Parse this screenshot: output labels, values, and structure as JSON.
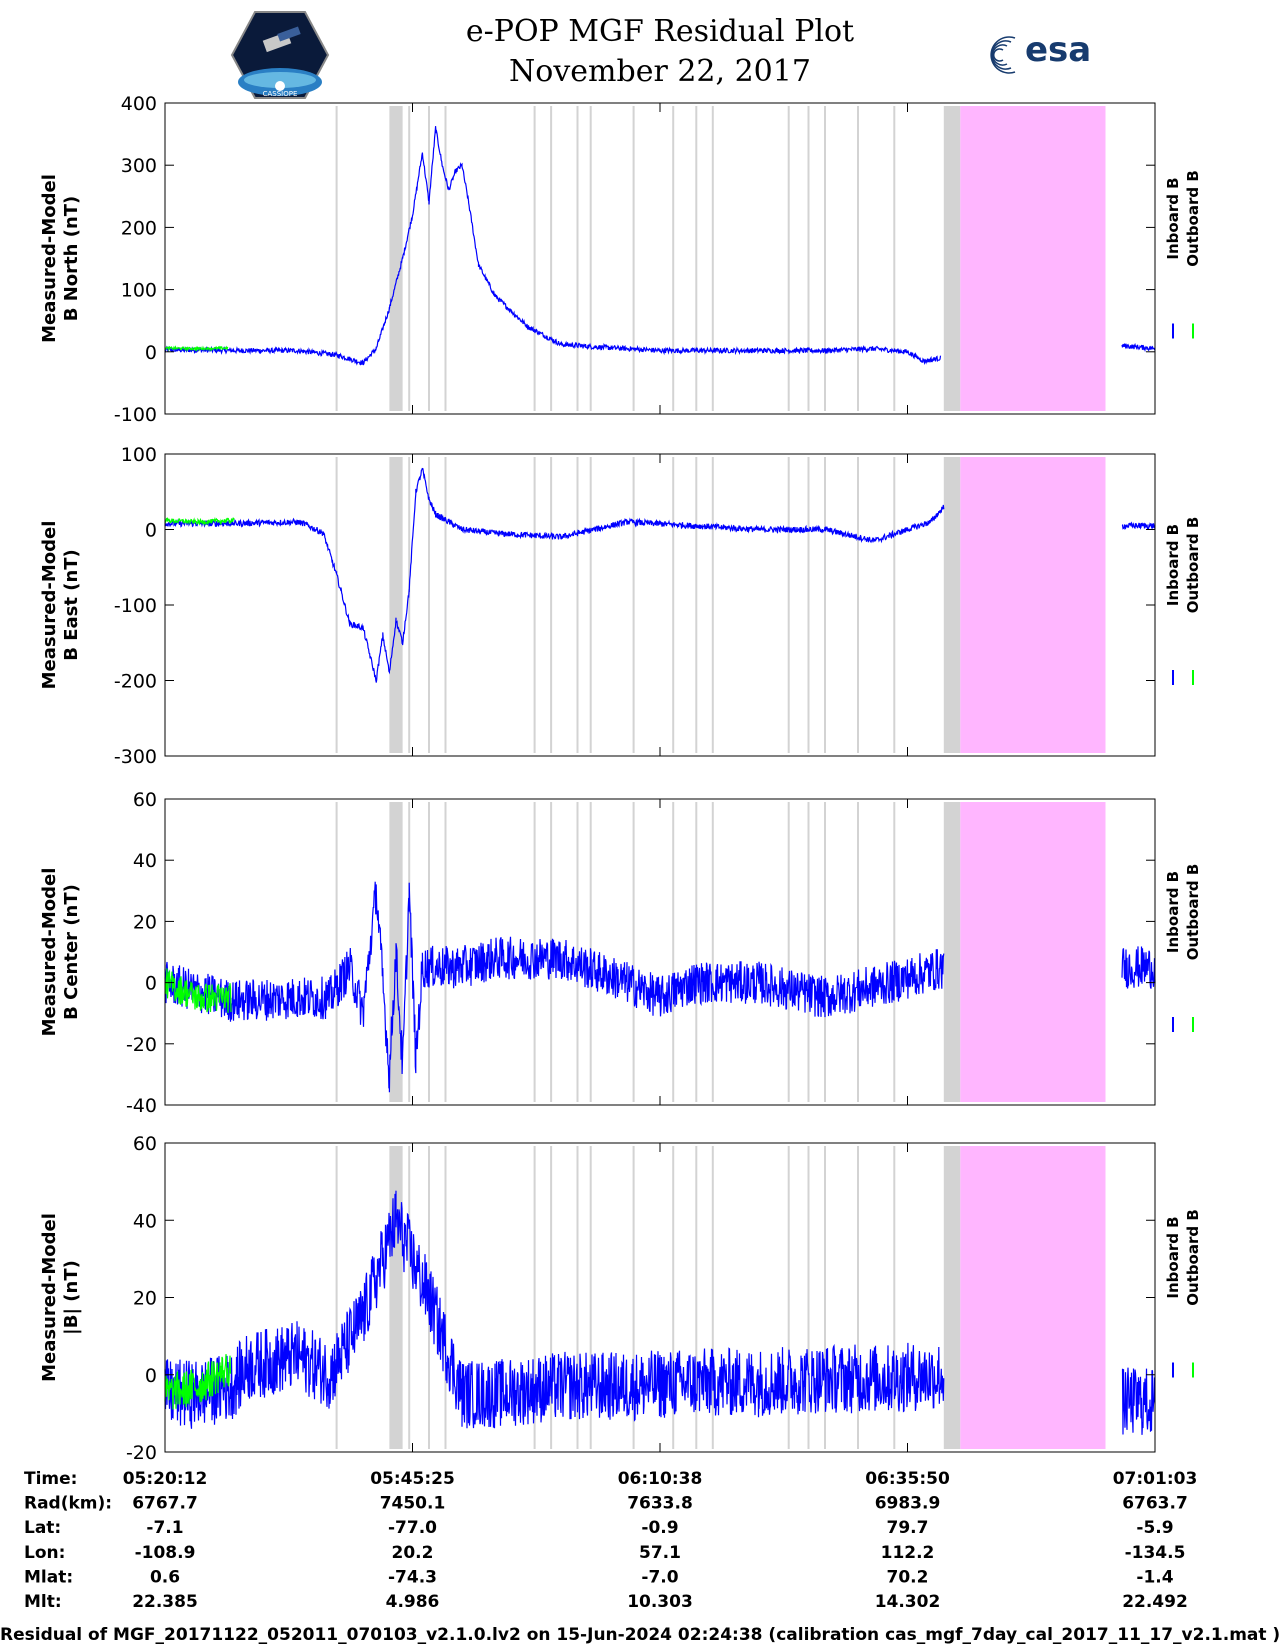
{
  "header": {
    "title_line1": "e-POP MGF Residual Plot",
    "title_line2": "November 22, 2017",
    "logo_left": "CASSIOPE",
    "logo_right": "esa"
  },
  "colors": {
    "inboard": "#0000ff",
    "outboard": "#00ff00",
    "gap_gray": "#d3d3d3",
    "missing_pink": "#ffb6ff"
  },
  "chart_data": [
    {
      "type": "line",
      "ylabel_line1": "Measured-Model",
      "ylabel_line2": "B North (nT)",
      "ylim": [
        -100,
        400
      ],
      "yticks": [
        400,
        300,
        200,
        100,
        0,
        -100
      ],
      "legend": [
        "Inboard B",
        "Outboard B"
      ],
      "series": [
        {
          "name": "Inboard B",
          "color": "#0000ff",
          "noise": 4,
          "x": [
            0,
            10,
            20,
            40,
            52,
            60,
            64,
            68,
            72,
            75,
            78,
            80,
            82,
            84,
            86,
            88,
            90,
            92,
            95,
            100,
            110,
            120,
            130,
            150,
            170,
            200,
            215,
            225,
            230,
            235
          ],
          "y": [
            3,
            3,
            2,
            2,
            -5,
            -18,
            5,
            70,
            150,
            220,
            320,
            240,
            360,
            300,
            260,
            290,
            300,
            240,
            140,
            90,
            40,
            12,
            8,
            2,
            2,
            2,
            5,
            0,
            -15,
            -10
          ]
        },
        {
          "name": "Outboard B",
          "color": "#00ff00",
          "noise": 2,
          "x": [
            0,
            10,
            19
          ],
          "y": [
            6,
            5,
            6
          ]
        }
      ],
      "xlim_gap_end": 237,
      "resume_x": [
        290,
        300
      ],
      "resume_y": [
        10,
        5
      ]
    },
    {
      "type": "line",
      "ylabel_line1": "Measured-Model",
      "ylabel_line2": "B East (nT)",
      "ylim": [
        -300,
        100
      ],
      "yticks": [
        100,
        0,
        -100,
        -200,
        -300
      ],
      "legend": [
        "Inboard B",
        "Outboard B"
      ],
      "series": [
        {
          "name": "Inboard B",
          "color": "#0000ff",
          "noise": 4,
          "x": [
            0,
            20,
            40,
            42,
            48,
            52,
            56,
            60,
            64,
            66,
            68,
            70,
            72,
            74,
            76,
            78,
            80,
            82,
            84,
            86,
            90,
            100,
            120,
            140,
            160,
            180,
            200,
            215,
            225,
            232,
            236
          ],
          "y": [
            8,
            8,
            10,
            8,
            -5,
            -60,
            -125,
            -130,
            -200,
            -140,
            -190,
            -120,
            -150,
            -80,
            50,
            80,
            40,
            20,
            15,
            10,
            0,
            -5,
            -10,
            10,
            5,
            0,
            0,
            -15,
            0,
            10,
            30
          ]
        },
        {
          "name": "Outboard B",
          "color": "#00ff00",
          "noise": 3,
          "x": [
            0,
            10,
            21
          ],
          "y": [
            12,
            10,
            12
          ]
        }
      ],
      "xlim_gap_end": 237,
      "resume_x": [
        290,
        300
      ],
      "resume_y": [
        5,
        5
      ]
    },
    {
      "type": "line",
      "ylabel_line1": "Measured-Model",
      "ylabel_line2": "B Center (nT)",
      "ylim": [
        -40,
        60
      ],
      "yticks": [
        60,
        40,
        20,
        0,
        -20,
        -40
      ],
      "legend": [
        "Inboard B",
        "Outboard B"
      ],
      "series": [
        {
          "name": "Inboard B",
          "color": "#0000ff",
          "noise": 7,
          "x": [
            0,
            20,
            40,
            50,
            56,
            60,
            64,
            68,
            70,
            72,
            74,
            76,
            78,
            80,
            84,
            90,
            100,
            120,
            140,
            150,
            160,
            180,
            200,
            220,
            236
          ],
          "y": [
            0,
            -6,
            -5,
            -5,
            5,
            -10,
            30,
            -30,
            10,
            -28,
            30,
            -25,
            5,
            5,
            5,
            5,
            8,
            8,
            0,
            -5,
            0,
            0,
            -5,
            0,
            5
          ]
        },
        {
          "name": "Outboard B",
          "color": "#00ff00",
          "noise": 5,
          "x": [
            0,
            10,
            20
          ],
          "y": [
            0,
            -5,
            -5
          ]
        }
      ],
      "xlim_gap_end": 237,
      "resume_x": [
        290,
        300
      ],
      "resume_y": [
        5,
        5
      ]
    },
    {
      "type": "line",
      "ylabel_line1": "Measured-Model",
      "ylabel_line2": "|B| (nT)",
      "ylim": [
        -20,
        60
      ],
      "yticks": [
        60,
        40,
        20,
        0,
        -20
      ],
      "legend": [
        "Inboard B",
        "Outboard B"
      ],
      "series": [
        {
          "name": "Inboard B",
          "color": "#0000ff",
          "noise": 9,
          "x": [
            0,
            10,
            20,
            25,
            40,
            50,
            60,
            70,
            80,
            90,
            100,
            120,
            140,
            160,
            180,
            200,
            220,
            236
          ],
          "y": [
            -5,
            -5,
            -3,
            2,
            5,
            0,
            15,
            40,
            20,
            -5,
            -5,
            -3,
            -3,
            -2,
            -2,
            -1,
            -1,
            0
          ]
        },
        {
          "name": "Outboard B",
          "color": "#00ff00",
          "noise": 5,
          "x": [
            0,
            10,
            20
          ],
          "y": [
            -5,
            -3,
            2
          ]
        }
      ],
      "xlim_gap_end": 237,
      "resume_x": [
        290,
        300
      ],
      "resume_y": [
        -7,
        -7
      ]
    }
  ],
  "time_axis": {
    "xlim": [
      0,
      300
    ],
    "tick_positions": [
      0,
      75,
      150,
      225,
      300
    ],
    "gray_bands": [
      [
        68,
        72
      ],
      [
        236,
        241
      ]
    ],
    "gray_lines": [
      52,
      74,
      80,
      85,
      112,
      117,
      125,
      129,
      142,
      154,
      161,
      166,
      189,
      195,
      200,
      210,
      221
    ],
    "pink_band": [
      241,
      285
    ]
  },
  "info_table": {
    "labels": [
      "Time:",
      "Rad(km):",
      "Lat:",
      "Lon:",
      "Mlat:",
      "Mlt:"
    ],
    "columns": [
      [
        "05:20:12",
        "6767.7",
        "-7.1",
        "-108.9",
        "0.6",
        "22.385"
      ],
      [
        "05:45:25",
        "7450.1",
        "-77.0",
        "20.2",
        "-74.3",
        "4.986"
      ],
      [
        "06:10:38",
        "7633.8",
        "-0.9",
        "57.1",
        "-7.0",
        "10.303"
      ],
      [
        "06:35:50",
        "6983.9",
        "79.7",
        "112.2",
        "70.2",
        "14.302"
      ],
      [
        "07:01:03",
        "6763.7",
        "-5.9",
        "-134.5",
        "-1.4",
        "22.492"
      ]
    ]
  },
  "footer": {
    "text": "Residual of MGF_20171122_052011_070103_v2.1.0.lv2 on 15-Jun-2024 02:24:38 (calibration cas_mgf_7day_cal_2017_11_17_v2.1.mat )"
  }
}
